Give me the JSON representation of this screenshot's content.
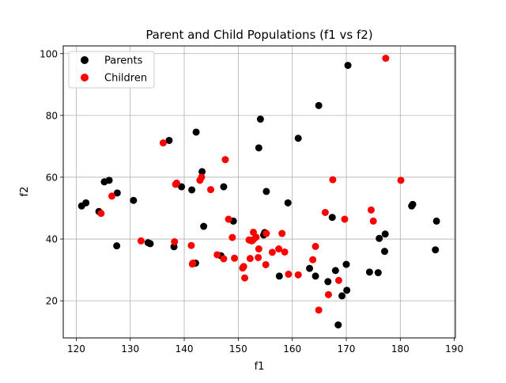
{
  "chart_data": {
    "type": "scatter",
    "title": "Parent and Child Populations (f1 vs f2)",
    "xlabel": "f1",
    "ylabel": "f2",
    "xlim": [
      117.6,
      190.2
    ],
    "ylim": [
      8.0,
      102.5
    ],
    "xticks": [
      120,
      130,
      140,
      150,
      160,
      170,
      180,
      190
    ],
    "yticks": [
      20,
      40,
      60,
      80,
      100
    ],
    "grid": true,
    "legend_position": "upper-left",
    "series": [
      {
        "name": "Parents",
        "color": "#000000",
        "points": [
          [
            121,
            50.7
          ],
          [
            121.8,
            51.7
          ],
          [
            124.2,
            48.9
          ],
          [
            125.2,
            58.5
          ],
          [
            126.1,
            59
          ],
          [
            127.5,
            37.8
          ],
          [
            127.6,
            54.9
          ],
          [
            130.6,
            52.5
          ],
          [
            133.3,
            38.8
          ],
          [
            133.7,
            38.5
          ],
          [
            137.2,
            71.9
          ],
          [
            138.1,
            37.5
          ],
          [
            139.5,
            56.9
          ],
          [
            141.4,
            55.9
          ],
          [
            142.1,
            32.2
          ],
          [
            142.2,
            74.6
          ],
          [
            143.3,
            61.8
          ],
          [
            143.6,
            44.1
          ],
          [
            146.8,
            34.6
          ],
          [
            147.3,
            56.9
          ],
          [
            149.1,
            45.8
          ],
          [
            153.8,
            69.5
          ],
          [
            154.1,
            78.8
          ],
          [
            154.7,
            41.3
          ],
          [
            154.9,
            42.1
          ],
          [
            155.2,
            55.4
          ],
          [
            157.6,
            28
          ],
          [
            159.2,
            51.7
          ],
          [
            161.1,
            72.6
          ],
          [
            163.2,
            30.5
          ],
          [
            164.3,
            28
          ],
          [
            164.9,
            83.2
          ],
          [
            166.6,
            26.2
          ],
          [
            167.4,
            47
          ],
          [
            168,
            29.8
          ],
          [
            168.5,
            12.2
          ],
          [
            169.2,
            21.6
          ],
          [
            170,
            31.8
          ],
          [
            170.1,
            23.4
          ],
          [
            170.3,
            96.2
          ],
          [
            174.3,
            29.3
          ],
          [
            175.9,
            29.1
          ],
          [
            176.1,
            40.2
          ],
          [
            177.1,
            36
          ],
          [
            177.2,
            41.6
          ],
          [
            182.1,
            50.7
          ],
          [
            182.3,
            51.2
          ],
          [
            186.5,
            36.5
          ],
          [
            186.7,
            45.8
          ]
        ]
      },
      {
        "name": "Children",
        "color": "#ff0000",
        "points": [
          [
            124.6,
            48.3
          ],
          [
            126.6,
            53.9
          ],
          [
            132,
            39.4
          ],
          [
            136.1,
            71.1
          ],
          [
            138.2,
            39.1
          ],
          [
            138.4,
            57.7
          ],
          [
            138.6,
            58.1
          ],
          [
            141.3,
            37.9
          ],
          [
            141.5,
            31.9
          ],
          [
            141.6,
            32.2
          ],
          [
            142.9,
            59
          ],
          [
            143.2,
            60
          ],
          [
            144.9,
            56
          ],
          [
            146.1,
            34.9
          ],
          [
            147.3,
            33.6
          ],
          [
            147.6,
            65.7
          ],
          [
            148.2,
            46.4
          ],
          [
            148.9,
            40.5
          ],
          [
            149.3,
            33.8
          ],
          [
            150.8,
            30.6
          ],
          [
            151,
            31.1
          ],
          [
            151.2,
            27.4
          ],
          [
            152,
            39.7
          ],
          [
            152.2,
            33.7
          ],
          [
            152.5,
            39.4
          ],
          [
            152.8,
            39.8
          ],
          [
            152.8,
            42.2
          ],
          [
            153.3,
            40.6
          ],
          [
            153.7,
            34
          ],
          [
            153.8,
            36.8
          ],
          [
            155.1,
            31.7
          ],
          [
            155.2,
            41.8
          ],
          [
            156.3,
            35.7
          ],
          [
            157.5,
            36.8
          ],
          [
            158.1,
            41.8
          ],
          [
            158.6,
            35.8
          ],
          [
            159.3,
            28.6
          ],
          [
            161.1,
            28.4
          ],
          [
            163.8,
            33.3
          ],
          [
            164.3,
            37.6
          ],
          [
            164.9,
            17
          ],
          [
            166.1,
            48.6
          ],
          [
            166.7,
            22
          ],
          [
            167.5,
            59.2
          ],
          [
            168.6,
            26.6
          ],
          [
            169.7,
            46.4
          ],
          [
            174.6,
            49.4
          ],
          [
            175,
            45.8
          ],
          [
            177.3,
            98.5
          ],
          [
            180.1,
            59
          ]
        ]
      }
    ]
  }
}
